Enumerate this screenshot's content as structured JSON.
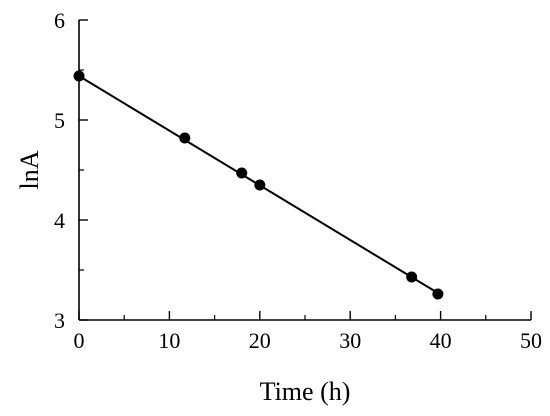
{
  "chart_data": {
    "type": "scatter",
    "title": "",
    "xlabel": "Time (h)",
    "ylabel": "lnA",
    "xlim": [
      0,
      50
    ],
    "ylim": [
      3,
      6
    ],
    "x_ticks": [
      "0",
      "10",
      "20",
      "30",
      "40",
      "50"
    ],
    "y_ticks": [
      "3",
      "4",
      "5",
      "6"
    ],
    "grid": false,
    "legend": "none",
    "series": [
      {
        "type": "scatter",
        "x": [
          0,
          11.7,
          18,
          20,
          36.8,
          39.7
        ],
        "y": [
          5.44,
          4.82,
          4.47,
          4.35,
          3.43,
          3.26
        ]
      }
    ],
    "fit_line": {
      "x": [
        0,
        39.7
      ],
      "y": [
        5.44,
        3.27
      ]
    },
    "colors": {
      "marker": "#000000",
      "line": "#000000",
      "axis": "#000000"
    }
  }
}
